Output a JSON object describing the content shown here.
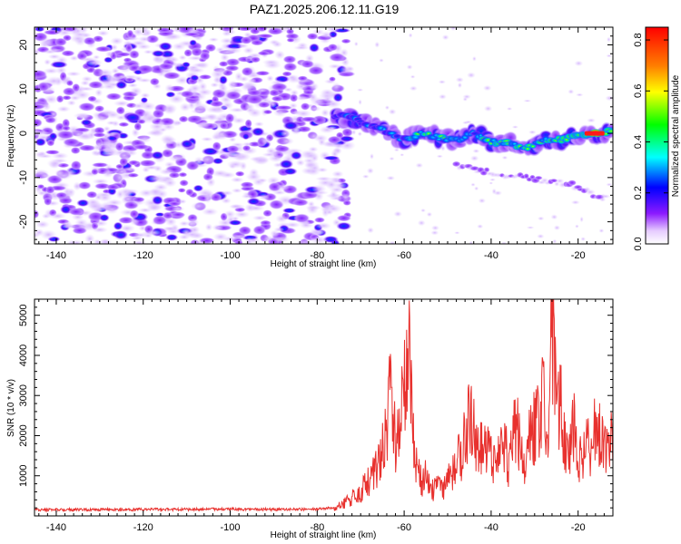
{
  "title": "PAZ1.2025.206.12.11.G19",
  "colors": {
    "snr_line": "#e8312e",
    "frame": "#000000"
  },
  "chart_data": [
    {
      "type": "heatmap",
      "name": "spectrogram",
      "xlabel": "Height of straight line (km)",
      "ylabel": "Frequency (Hz)",
      "xlim": [
        -145,
        -12
      ],
      "ylim": [
        -25,
        24
      ],
      "xticks": [
        -140,
        -120,
        -100,
        -80,
        -60,
        -40,
        -20
      ],
      "yticks": [
        20,
        10,
        0,
        -10,
        -20
      ],
      "colorbar": {
        "label": "Normalized spectral amplitude",
        "range": [
          0.0,
          0.85
        ],
        "ticks": [
          "0.0",
          "0.2",
          "0.4",
          "0.6",
          "0.8"
        ],
        "colormap": "rainbow (violet → blue → cyan → green → yellow → red)"
      },
      "signal_track": {
        "description": "Strong tone near 0 Hz appearing around -75 km, drifting from about +4 Hz to -5 Hz near -30 km and back to about 0 Hz at -12 km",
        "x": [
          -76,
          -72,
          -68,
          -64,
          -60,
          -56,
          -52,
          -48,
          -44,
          -40,
          -36,
          -32,
          -28,
          -24,
          -20,
          -16,
          -12
        ],
        "freq": [
          4,
          3.5,
          2,
          0.5,
          -1.5,
          0,
          -1,
          -1.5,
          0,
          -2,
          -2,
          -3.5,
          -1.5,
          -1.5,
          -0.5,
          0,
          0.5
        ],
        "amplitude": [
          0.25,
          0.3,
          0.35,
          0.3,
          0.35,
          0.5,
          0.4,
          0.45,
          0.4,
          0.45,
          0.5,
          0.45,
          0.5,
          0.55,
          0.6,
          0.8,
          0.5
        ]
      },
      "secondary_track": {
        "x": [
          -48,
          -40,
          -32,
          -26,
          -20,
          -16,
          -13
        ],
        "freq": [
          -7,
          -9,
          -10,
          -11,
          -12,
          -14,
          -15
        ]
      }
    },
    {
      "type": "line",
      "name": "snr",
      "xlabel": "Height of straight line (km)",
      "ylabel": "SNR (10 * v/v)",
      "xlim": [
        -145,
        -12
      ],
      "ylim": [
        0,
        5400
      ],
      "xticks": [
        -140,
        -120,
        -100,
        -80,
        -60,
        -40,
        -20
      ],
      "yticks": [
        1000,
        2000,
        3000,
        4000,
        5000
      ],
      "series": [
        {
          "x": [
            -145,
            -130,
            -115,
            -100,
            -90,
            -80,
            -76,
            -74,
            -72,
            -70,
            -68,
            -66,
            -64,
            -63,
            -62,
            -61,
            -60,
            -59,
            -58,
            -57,
            -56,
            -55,
            -54,
            -53,
            -52,
            -51,
            -50,
            -49,
            -48,
            -47,
            -46,
            -45,
            -44,
            -43,
            -42,
            -41,
            -40,
            -39,
            -38,
            -37,
            -36,
            -35,
            -34,
            -33,
            -32,
            -31,
            -30,
            -29,
            -28,
            -27,
            -26,
            -25,
            -24,
            -23,
            -22,
            -21,
            -20,
            -19,
            -18,
            -17,
            -16,
            -15,
            -14,
            -13,
            -12
          ],
          "values": [
            150,
            160,
            160,
            170,
            160,
            170,
            200,
            300,
            450,
            600,
            900,
            1250,
            2000,
            3400,
            1800,
            2500,
            3000,
            4500,
            2000,
            1200,
            800,
            1100,
            600,
            700,
            800,
            600,
            1000,
            1100,
            1300,
            1500,
            1900,
            2500,
            2200,
            1600,
            1900,
            1800,
            1500,
            1300,
            1700,
            1900,
            1200,
            2000,
            2200,
            1500,
            1000,
            2300,
            2100,
            2600,
            3400,
            1600,
            5400,
            2400,
            2800,
            1900,
            1500,
            2200,
            1300,
            1500,
            1900,
            1700,
            2400,
            2000,
            1700,
            1500,
            2100
          ]
        }
      ]
    }
  ]
}
